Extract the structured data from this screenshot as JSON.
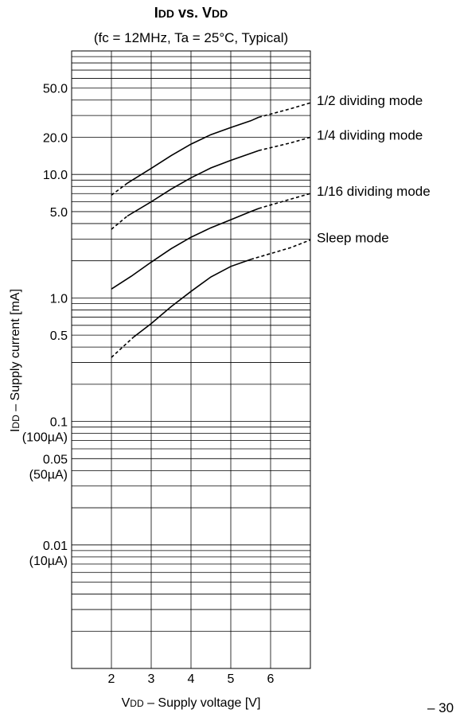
{
  "chart_data": {
    "type": "line",
    "title_parts": [
      {
        "text": "I",
        "small": false
      },
      {
        "text": "DD",
        "small": true
      },
      {
        "text": " vs. V",
        "small": false
      },
      {
        "text": "DD",
        "small": true
      }
    ],
    "subtitle": "(fc = 12MHz, Ta = 25°C, Typical)",
    "xlabel_parts": [
      {
        "text": "V",
        "small": false
      },
      {
        "text": "DD",
        "small": true
      },
      {
        "text": " – Supply voltage [V]",
        "small": false
      }
    ],
    "ylabel_parts": [
      {
        "text": "I",
        "small": false
      },
      {
        "text": "DD",
        "small": true
      },
      {
        "text": " – Supply current [mA]",
        "small": false
      }
    ],
    "x_scale": "linear",
    "y_scale": "log",
    "xlim": [
      1,
      7
    ],
    "ylim": [
      0.001,
      100
    ],
    "grid": true,
    "x_ticks": [
      2,
      3,
      4,
      5,
      6
    ],
    "x_tick_labels": [
      "2",
      "3",
      "4",
      "5",
      "6"
    ],
    "y_ticks": [
      {
        "value": 50,
        "label": "50.0"
      },
      {
        "value": 20,
        "label": "20.0"
      },
      {
        "value": 10,
        "label": "10.0"
      },
      {
        "value": 5,
        "label": "5.0"
      },
      {
        "value": 1,
        "label": "1.0"
      },
      {
        "value": 0.5,
        "label": "0.5"
      },
      {
        "value": 0.1,
        "label": "0.1",
        "sub": "(100µA)"
      },
      {
        "value": 0.05,
        "label": "0.05",
        "sub": "(50µA)"
      },
      {
        "value": 0.01,
        "label": "0.01",
        "sub": "(10µA)"
      }
    ],
    "series": [
      {
        "name": "1/2 dividing mode",
        "solid": [
          [
            2.4,
            8.5
          ],
          [
            3.0,
            11.2
          ],
          [
            3.5,
            14.2
          ],
          [
            4.0,
            17.6
          ],
          [
            4.5,
            21.0
          ],
          [
            5.0,
            24.0
          ],
          [
            5.5,
            27.2
          ],
          [
            5.7,
            29.0
          ]
        ],
        "dashed_start": [
          [
            2.0,
            6.8
          ],
          [
            2.4,
            8.5
          ]
        ],
        "dashed_end": [
          [
            5.7,
            29.0
          ],
          [
            6.5,
            34.0
          ],
          [
            7.0,
            38.0
          ]
        ]
      },
      {
        "name": "1/4 dividing mode",
        "solid": [
          [
            2.4,
            4.6
          ],
          [
            3.0,
            6.0
          ],
          [
            3.5,
            7.6
          ],
          [
            4.0,
            9.4
          ],
          [
            4.5,
            11.3
          ],
          [
            5.0,
            13.0
          ],
          [
            5.5,
            14.8
          ],
          [
            5.7,
            15.6
          ]
        ],
        "dashed_start": [
          [
            2.0,
            3.6
          ],
          [
            2.4,
            4.6
          ]
        ],
        "dashed_end": [
          [
            5.7,
            15.6
          ],
          [
            6.5,
            18.0
          ],
          [
            7.0,
            20.0
          ]
        ]
      },
      {
        "name": "1/16 dividing mode",
        "solid": [
          [
            2.0,
            1.18
          ],
          [
            2.5,
            1.5
          ],
          [
            3.0,
            1.95
          ],
          [
            3.5,
            2.5
          ],
          [
            4.0,
            3.1
          ],
          [
            4.5,
            3.7
          ],
          [
            5.0,
            4.3
          ],
          [
            5.5,
            5.0
          ],
          [
            5.7,
            5.3
          ]
        ],
        "dashed_start": [],
        "dashed_end": [
          [
            5.7,
            5.3
          ],
          [
            6.5,
            6.3
          ],
          [
            7.0,
            7.0
          ]
        ]
      },
      {
        "name": "Sleep mode",
        "solid": [
          [
            2.55,
            0.48
          ],
          [
            3.0,
            0.62
          ],
          [
            3.5,
            0.85
          ],
          [
            4.0,
            1.13
          ],
          [
            4.5,
            1.48
          ],
          [
            5.0,
            1.8
          ],
          [
            5.5,
            2.05
          ]
        ],
        "dashed_start": [
          [
            2.0,
            0.33
          ],
          [
            2.55,
            0.48
          ]
        ],
        "dashed_end": [
          [
            5.5,
            2.05
          ],
          [
            6.5,
            2.55
          ],
          [
            7.0,
            2.95
          ]
        ]
      }
    ],
    "right_clip_text": "– 30"
  }
}
